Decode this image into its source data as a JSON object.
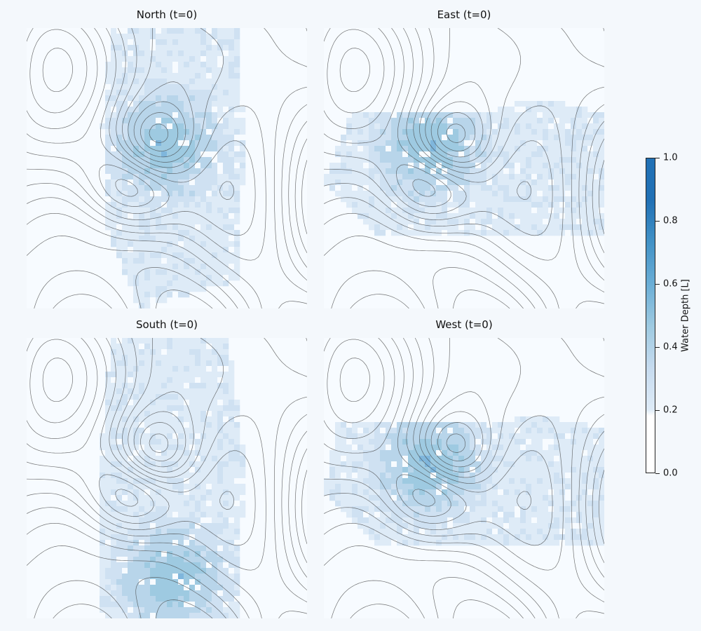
{
  "chart_data": {
    "type": "heatmap",
    "panels": [
      {
        "id": "north",
        "title": "North (t=0)",
        "wet_region": [
          [
            0.3,
            0.0
          ],
          [
            0.75,
            0.0
          ],
          [
            0.78,
            0.4
          ],
          [
            0.75,
            0.9
          ],
          [
            0.4,
            1.0
          ],
          [
            0.28,
            0.7
          ],
          [
            0.27,
            0.35
          ]
        ],
        "hotspot": [
          0.5,
          0.42
        ]
      },
      {
        "id": "east",
        "title": "East (t=0)",
        "wet_region": [
          [
            0.1,
            0.3
          ],
          [
            0.6,
            0.3
          ],
          [
            0.75,
            0.25
          ],
          [
            1.0,
            0.3
          ],
          [
            1.0,
            0.75
          ],
          [
            0.7,
            0.75
          ],
          [
            0.2,
            0.75
          ],
          [
            0.0,
            0.55
          ]
        ],
        "hotspot": [
          0.38,
          0.42
        ]
      },
      {
        "id": "south",
        "title": "South (t=0)",
        "wet_region": [
          [
            0.3,
            0.0
          ],
          [
            0.72,
            0.0
          ],
          [
            0.78,
            0.45
          ],
          [
            0.75,
            1.0
          ],
          [
            0.25,
            1.0
          ],
          [
            0.27,
            0.35
          ]
        ],
        "hotspot": [
          0.52,
          0.85
        ]
      },
      {
        "id": "west",
        "title": "West (t=0)",
        "wet_region": [
          [
            0.05,
            0.3
          ],
          [
            0.55,
            0.3
          ],
          [
            0.8,
            0.28
          ],
          [
            1.0,
            0.32
          ],
          [
            1.0,
            0.75
          ],
          [
            0.75,
            0.75
          ],
          [
            0.2,
            0.75
          ],
          [
            0.0,
            0.55
          ]
        ],
        "hotspot": [
          0.38,
          0.45
        ]
      }
    ],
    "colorbar": {
      "label": "Water Depth [L]",
      "range": [
        0.0,
        1.0
      ],
      "ticks": [
        "0.0",
        "0.2",
        "0.4",
        "0.6",
        "0.8",
        "1.0"
      ],
      "colors": [
        "#f7fbff",
        "#deebf7",
        "#c6dbef",
        "#9ecae1",
        "#6baed6",
        "#4292c6",
        "#2171b5"
      ]
    }
  }
}
